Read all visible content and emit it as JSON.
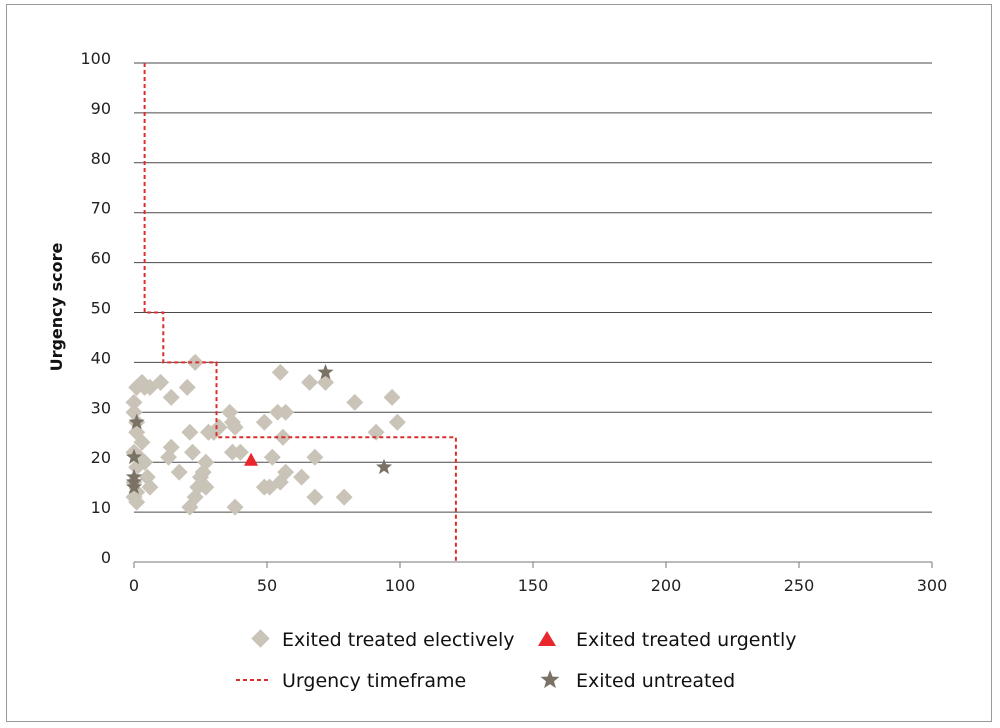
{
  "chart_data": {
    "type": "scatter",
    "title": "",
    "xlabel": "",
    "ylabel": "Urgency score",
    "xlim": [
      0,
      300
    ],
    "ylim": [
      0,
      100
    ],
    "x_ticks": [
      "0",
      "50",
      "100",
      "150",
      "200",
      "250",
      "300"
    ],
    "y_ticks": [
      "0",
      "10",
      "20",
      "30",
      "40",
      "50",
      "60",
      "70",
      "80",
      "90",
      "100"
    ],
    "grid": "horizontal",
    "legend_position": "bottom",
    "colors": {
      "elective": "#c9c3b8",
      "urgent": "#e8262b",
      "timeframe": "#d92f2c",
      "untreated": "#7a7264",
      "grid": "#4a4a4a"
    },
    "series": [
      {
        "name": "Exited treated electively",
        "marker": "diamond",
        "points": [
          [
            0,
            32
          ],
          [
            1,
            35
          ],
          [
            0,
            30
          ],
          [
            1,
            28
          ],
          [
            1,
            26
          ],
          [
            0,
            22
          ],
          [
            1,
            19
          ],
          [
            0,
            16
          ],
          [
            1,
            14
          ],
          [
            0,
            13
          ],
          [
            1,
            12
          ],
          [
            3,
            36
          ],
          [
            4,
            35
          ],
          [
            6,
            35
          ],
          [
            10,
            36
          ],
          [
            3,
            24
          ],
          [
            5,
            17
          ],
          [
            6,
            15
          ],
          [
            2,
            21
          ],
          [
            4,
            20
          ],
          [
            14,
            33
          ],
          [
            14,
            23
          ],
          [
            13,
            21
          ],
          [
            17,
            18
          ],
          [
            20,
            35
          ],
          [
            21,
            26
          ],
          [
            22,
            22
          ],
          [
            23,
            40
          ],
          [
            21,
            11
          ],
          [
            23,
            13
          ],
          [
            24,
            15
          ],
          [
            25,
            17
          ],
          [
            26,
            18
          ],
          [
            27,
            20
          ],
          [
            27,
            15
          ],
          [
            28,
            26
          ],
          [
            30,
            26
          ],
          [
            32,
            27
          ],
          [
            36,
            30
          ],
          [
            37,
            28
          ],
          [
            38,
            27
          ],
          [
            37,
            22
          ],
          [
            40,
            22
          ],
          [
            38,
            11
          ],
          [
            49,
            28
          ],
          [
            49,
            15
          ],
          [
            51,
            15
          ],
          [
            52,
            21
          ],
          [
            54,
            30
          ],
          [
            55,
            38
          ],
          [
            55,
            16
          ],
          [
            56,
            25
          ],
          [
            57,
            30
          ],
          [
            57,
            18
          ],
          [
            63,
            17
          ],
          [
            66,
            36
          ],
          [
            68,
            21
          ],
          [
            68,
            13
          ],
          [
            72,
            36
          ],
          [
            79,
            13
          ],
          [
            83,
            32
          ],
          [
            91,
            26
          ],
          [
            97,
            33
          ],
          [
            99,
            28
          ]
        ]
      },
      {
        "name": "Exited treated urgently",
        "marker": "triangle",
        "points": [
          [
            44,
            20.5
          ]
        ]
      },
      {
        "name": "Urgency timeframe",
        "marker": "dashed-line",
        "points": [
          [
            4,
            100
          ],
          [
            4,
            50
          ],
          [
            11,
            50
          ],
          [
            11,
            40
          ],
          [
            31,
            40
          ],
          [
            31,
            25
          ],
          [
            121,
            25
          ],
          [
            121,
            0
          ]
        ]
      },
      {
        "name": "Exited untreated",
        "marker": "star",
        "points": [
          [
            1,
            28
          ],
          [
            0,
            21
          ],
          [
            0,
            17
          ],
          [
            0,
            16
          ],
          [
            0,
            15
          ],
          [
            72,
            38
          ],
          [
            94,
            19
          ]
        ]
      }
    ]
  }
}
